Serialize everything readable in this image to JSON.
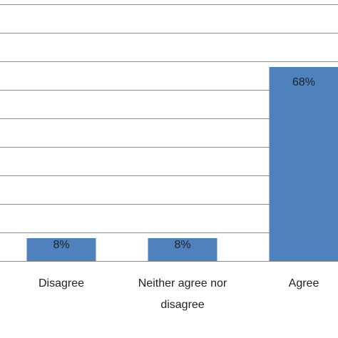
{
  "chart_data": {
    "type": "bar",
    "categories": [
      "Disagree",
      "Neither agree nor disagree",
      "Agree"
    ],
    "values": [
      8,
      8,
      68
    ],
    "value_labels": [
      "8%",
      "8%",
      "68%"
    ],
    "color": "#4f81bd",
    "ylim": [
      0,
      90
    ],
    "yticks": [
      0,
      10,
      20,
      30,
      40,
      50,
      60,
      70,
      80,
      90
    ],
    "grid": true
  }
}
